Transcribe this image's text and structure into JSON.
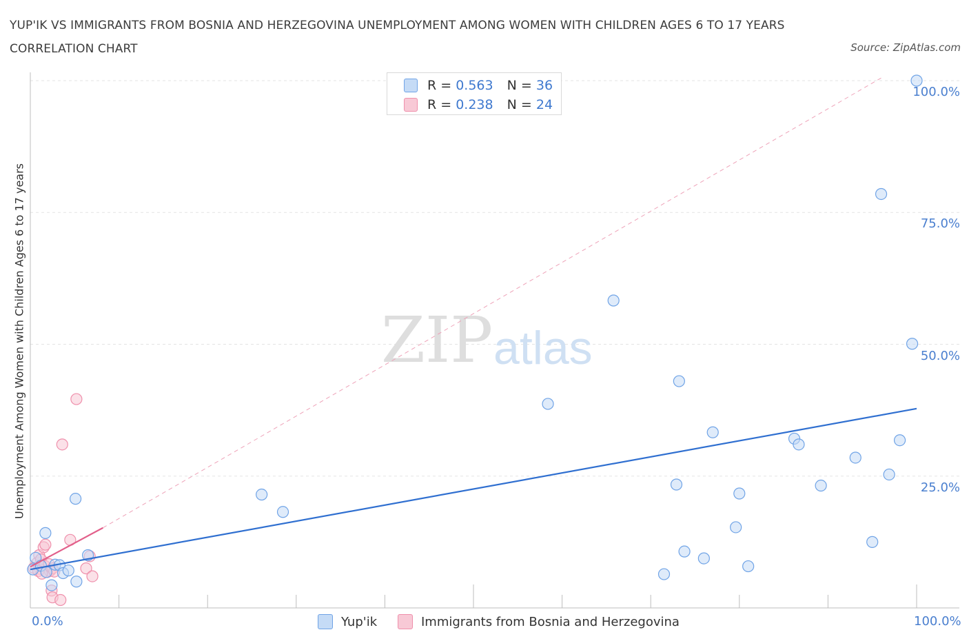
{
  "chart_data": {
    "type": "scatter",
    "title": "YUP'IK VS IMMIGRANTS FROM BOSNIA AND HERZEGOVINA UNEMPLOYMENT AMONG WOMEN WITH CHILDREN AGES 6 TO 17 YEARS CORRELATION CHART",
    "source": "Source: ZipAtlas.com",
    "xlabel": "",
    "ylabel": "Unemployment Among Women with Children Ages 6 to 17 years",
    "xlim": [
      0,
      100
    ],
    "ylim": [
      0,
      100
    ],
    "x_tick_labels": [
      "0.0%",
      "100.0%"
    ],
    "y_tick_values": [
      25,
      50,
      75,
      100
    ],
    "y_tick_labels": [
      "25.0%",
      "50.0%",
      "75.0%",
      "100.0%"
    ],
    "watermark": "ZIPatlas",
    "legend": {
      "r_label": "R =",
      "n_label": "N =",
      "entries": [
        {
          "name": "Yup'ik",
          "r": "0.563",
          "n": "36"
        },
        {
          "name": "Immigrants from Bosnia and Herzegovina",
          "r": "0.238",
          "n": "24"
        }
      ]
    },
    "series": [
      {
        "name": "Yup'ik",
        "color": "#6fa3e6",
        "fill": "#c5dbf6",
        "trend": {
          "x0": 0,
          "y0": 7.3,
          "x1": 100,
          "y1": 37.8,
          "color": "#2f6fd0"
        },
        "points": [
          [
            0.3,
            7.3
          ],
          [
            0.6,
            9.5
          ],
          [
            1.2,
            8.0
          ],
          [
            1.7,
            14.2
          ],
          [
            1.8,
            6.8
          ],
          [
            2.4,
            4.3
          ],
          [
            2.8,
            8.2
          ],
          [
            3.3,
            8.1
          ],
          [
            3.7,
            6.6
          ],
          [
            4.3,
            7.1
          ],
          [
            5.1,
            20.7
          ],
          [
            5.2,
            5.0
          ],
          [
            6.5,
            10.0
          ],
          [
            65.8,
            58.3
          ],
          [
            26.1,
            21.5
          ],
          [
            28.5,
            18.2
          ],
          [
            58.4,
            38.7
          ],
          [
            73.2,
            43.0
          ],
          [
            77.0,
            33.3
          ],
          [
            72.9,
            23.4
          ],
          [
            73.8,
            10.7
          ],
          [
            71.5,
            6.4
          ],
          [
            76.0,
            9.4
          ],
          [
            80.0,
            21.7
          ],
          [
            79.6,
            15.3
          ],
          [
            81.0,
            7.9
          ],
          [
            86.2,
            32.1
          ],
          [
            86.7,
            31.0
          ],
          [
            89.2,
            23.2
          ],
          [
            93.1,
            28.5
          ],
          [
            95.0,
            12.5
          ],
          [
            96.0,
            78.5
          ],
          [
            96.9,
            25.3
          ],
          [
            98.1,
            31.8
          ],
          [
            99.5,
            50.1
          ],
          [
            100.0,
            100.0
          ]
        ]
      },
      {
        "name": "Immigrants from Bosnia and Herzegovina",
        "color": "#ef8fab",
        "fill": "#f8c9d6",
        "trend": {
          "x0": 0,
          "y0": 7.8,
          "x1": 8.2,
          "y1": 15.2,
          "color": "#e25f8a"
        },
        "trend_extension": {
          "x0": 8.2,
          "y0": 15.2,
          "x1": 96,
          "y1": 100.5
        },
        "points": [
          [
            0.4,
            7.6
          ],
          [
            0.8,
            8.6
          ],
          [
            1.0,
            10.0
          ],
          [
            1.1,
            7.4
          ],
          [
            1.2,
            9.2
          ],
          [
            1.5,
            11.5
          ],
          [
            1.6,
            8.0
          ],
          [
            1.7,
            12.0
          ],
          [
            1.9,
            6.8
          ],
          [
            2.1,
            8.3
          ],
          [
            2.2,
            7.0
          ],
          [
            2.4,
            3.3
          ],
          [
            2.5,
            7.5
          ],
          [
            2.7,
            6.9
          ],
          [
            2.5,
            2.0
          ],
          [
            3.4,
            1.5
          ],
          [
            3.6,
            31.0
          ],
          [
            4.5,
            12.9
          ],
          [
            5.2,
            39.6
          ],
          [
            6.3,
            7.5
          ],
          [
            6.7,
            9.8
          ],
          [
            7.0,
            6.0
          ],
          [
            0.9,
            7.0
          ],
          [
            1.3,
            6.5
          ]
        ]
      }
    ]
  }
}
